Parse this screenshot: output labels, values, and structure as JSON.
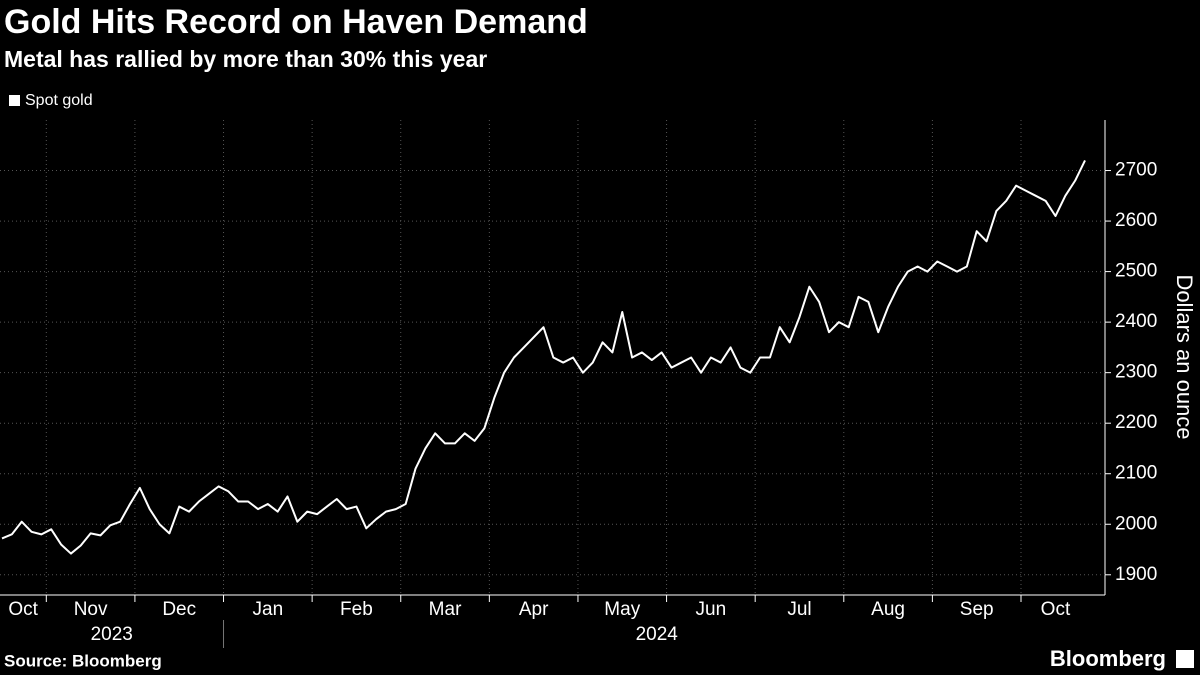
{
  "chart_data": {
    "type": "line",
    "title": "Gold Hits Record on Haven Demand",
    "subtitle": "Metal has rallied by more than 30% this year",
    "series_name": "Spot gold",
    "color": "#ffffff",
    "y_axis_label": "Dollars an ounce",
    "ylim": [
      1860,
      2800
    ],
    "yticks": [
      1900,
      2000,
      2100,
      2200,
      2300,
      2400,
      2500,
      2600,
      2700
    ],
    "grid": true,
    "x_groups": [
      {
        "label": "2023",
        "months": [
          {
            "label": "Oct",
            "values": [
              1972,
              1980,
              2005,
              1985,
              1980
            ]
          },
          {
            "label": "Nov",
            "values": [
              1990,
              1960,
              1942,
              1958,
              1982,
              1978,
              1998,
              2005,
              2040
            ]
          },
          {
            "label": "Dec",
            "values": [
              2072,
              2030,
              2000,
              1982,
              2035,
              2025,
              2045,
              2060,
              2075
            ]
          }
        ]
      },
      {
        "label": "2024",
        "months": [
          {
            "label": "Jan",
            "values": [
              2065,
              2045,
              2045,
              2030,
              2040,
              2025,
              2055,
              2005,
              2025
            ]
          },
          {
            "label": "Feb",
            "values": [
              2020,
              2035,
              2050,
              2030,
              2035,
              1992,
              2010,
              2025,
              2030
            ]
          },
          {
            "label": "Mar",
            "values": [
              2040,
              2110,
              2150,
              2180,
              2160,
              2160,
              2180,
              2165,
              2190
            ]
          },
          {
            "label": "Apr",
            "values": [
              2250,
              2300,
              2330,
              2350,
              2370,
              2390,
              2330,
              2320,
              2330
            ]
          },
          {
            "label": "May",
            "values": [
              2300,
              2320,
              2360,
              2340,
              2420,
              2330,
              2340,
              2325,
              2340
            ]
          },
          {
            "label": "Jun",
            "values": [
              2310,
              2320,
              2330,
              2300,
              2330,
              2320,
              2350,
              2310,
              2300
            ]
          },
          {
            "label": "Jul",
            "values": [
              2330,
              2330,
              2390,
              2360,
              2410,
              2470,
              2440,
              2380,
              2400
            ]
          },
          {
            "label": "Aug",
            "values": [
              2390,
              2450,
              2440,
              2380,
              2430,
              2470,
              2500,
              2510,
              2500
            ]
          },
          {
            "label": "Sep",
            "values": [
              2520,
              2510,
              2500,
              2510,
              2580,
              2560,
              2620,
              2640,
              2670
            ]
          },
          {
            "label": "Oct",
            "values": [
              2660,
              2650,
              2640,
              2610,
              2650,
              2680,
              2720
            ]
          }
        ]
      }
    ]
  },
  "source": "Source: Bloomberg",
  "brand": "Bloomberg"
}
